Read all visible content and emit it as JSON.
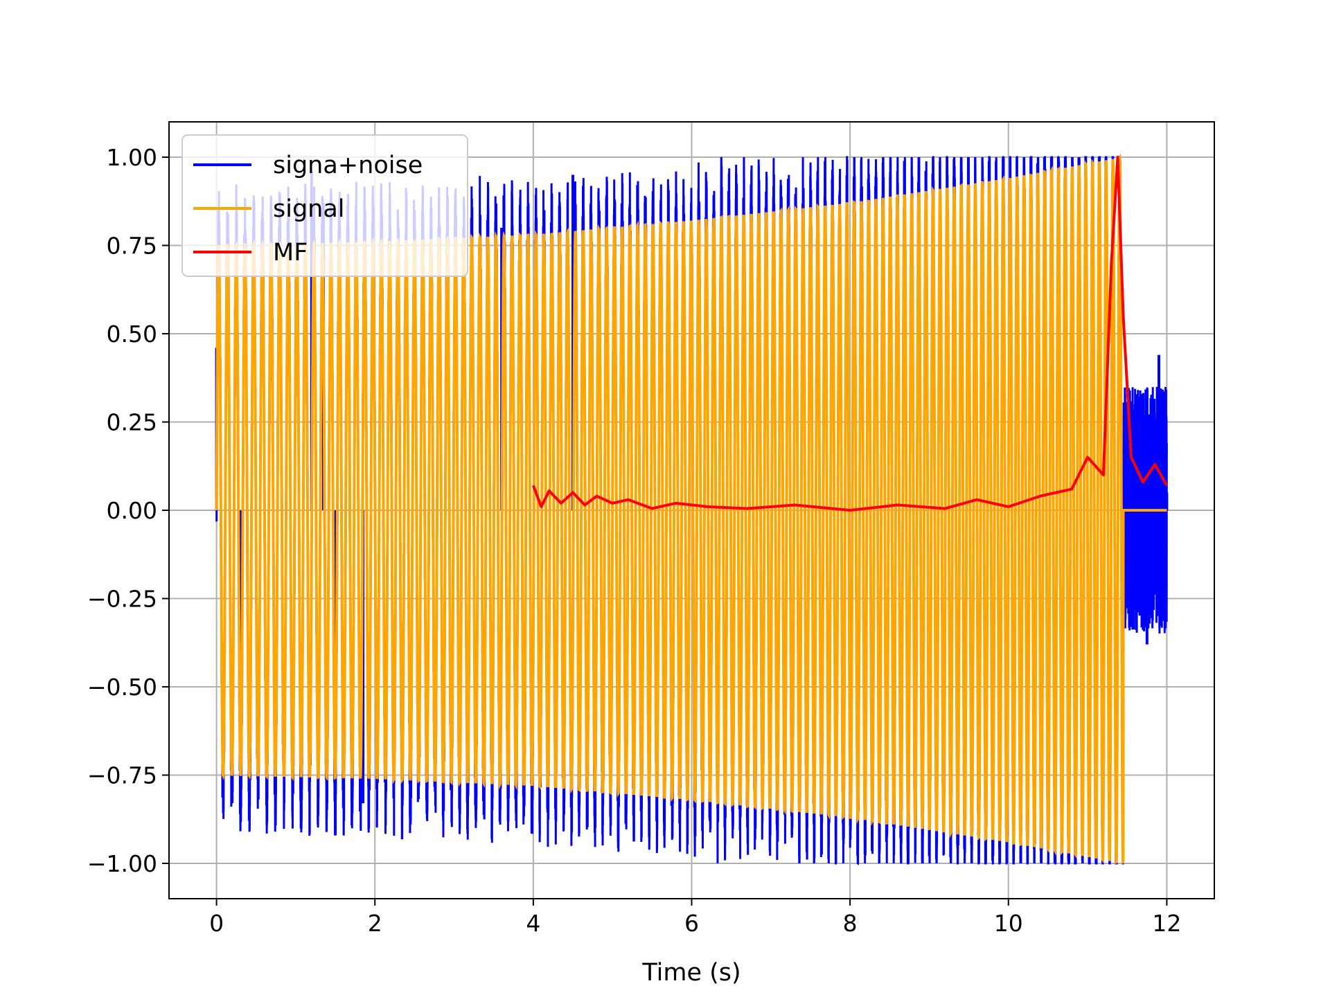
{
  "chart_data": {
    "type": "line",
    "title": "",
    "xlabel": "Time (s)",
    "ylabel": "",
    "xlim": [
      -0.6,
      12.6
    ],
    "ylim": [
      -1.1,
      1.1
    ],
    "grid": true,
    "legend_position": "top-left",
    "x_ticks": [
      0,
      2,
      4,
      6,
      8,
      10,
      12
    ],
    "x_tick_labels": [
      "0",
      "2",
      "4",
      "6",
      "8",
      "10",
      "12"
    ],
    "y_ticks": [
      1.0,
      0.75,
      0.5,
      0.25,
      0.0,
      -0.25,
      -0.5,
      -0.75,
      -1.0
    ],
    "y_tick_labels": [
      "1.00",
      "0.75",
      "0.50",
      "0.25",
      "0.00",
      "−0.25",
      "−0.50",
      "−0.75",
      "−1.00"
    ],
    "series": [
      {
        "name": "signa+noise",
        "color": "#0000ff",
        "description_points": {
          "x": [
            0,
            0.3,
            1.2,
            1.35,
            1.5,
            1.85,
            3.6,
            4.5,
            11.45,
            11.6,
            11.75,
            11.9,
            12.0
          ],
          "y": [
            0.46,
            -0.86,
            0.96,
            0.87,
            -0.92,
            -0.83,
            0.8,
            0.95,
            -0.4,
            0.3,
            -0.38,
            0.44,
            0.05
          ]
        }
      },
      {
        "name": "signal",
        "color": "#ffa500",
        "envelope": {
          "x": [
            0,
            2,
            4,
            6,
            8,
            10,
            11.45
          ],
          "y": [
            0.75,
            0.76,
            0.78,
            0.82,
            0.87,
            0.94,
            1.0
          ]
        },
        "end_x": 11.45,
        "after_end_value": 0.0
      },
      {
        "name": "MF",
        "color": "#ff0000",
        "x": [
          4.0,
          4.1,
          4.2,
          4.35,
          4.5,
          4.65,
          4.8,
          5.0,
          5.2,
          5.5,
          5.8,
          6.2,
          6.7,
          7.3,
          8.0,
          8.6,
          9.2,
          9.6,
          10.0,
          10.4,
          10.8,
          11.0,
          11.2,
          11.3,
          11.38,
          11.45,
          11.55,
          11.7,
          11.85,
          12.0
        ],
        "y": [
          0.07,
          0.01,
          0.055,
          0.02,
          0.05,
          0.015,
          0.04,
          0.02,
          0.03,
          0.005,
          0.02,
          0.01,
          0.005,
          0.015,
          0.0,
          0.015,
          0.005,
          0.03,
          0.01,
          0.04,
          0.06,
          0.15,
          0.1,
          0.7,
          1.0,
          0.55,
          0.15,
          0.08,
          0.13,
          0.07
        ]
      }
    ]
  },
  "legend": {
    "items": [
      {
        "label": "signa+noise",
        "color": "#0000ff"
      },
      {
        "label": "signal",
        "color": "#ffa500"
      },
      {
        "label": "MF",
        "color": "#ff0000"
      }
    ]
  }
}
